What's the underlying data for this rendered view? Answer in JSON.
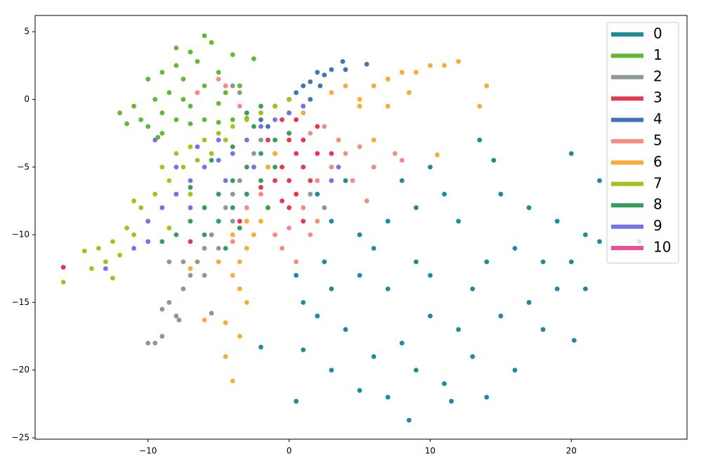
{
  "chart_data": {
    "type": "scatter",
    "xlim": [
      -18,
      28.2
    ],
    "ylim": [
      -25.1,
      6.2
    ],
    "xticks": [
      {
        "value": -10,
        "label": "−10"
      },
      0,
      10,
      20
    ],
    "yticks": [
      5,
      0,
      {
        "value": -5,
        "label": "−5"
      },
      {
        "value": -10,
        "label": "−10"
      },
      {
        "value": -15,
        "label": "−15"
      },
      {
        "value": -20,
        "label": "−20"
      },
      {
        "value": -25,
        "label": "−25"
      }
    ],
    "legend": "upper right",
    "series": [
      {
        "name": "0",
        "color": "#1f8a98",
        "x": [
          13.5,
          14.5,
          20,
          22,
          10,
          8,
          6,
          4,
          2,
          3,
          5,
          7,
          9,
          11,
          12,
          15,
          17,
          19,
          21,
          16,
          18,
          20,
          14,
          10,
          7,
          5,
          3,
          1,
          2,
          4,
          6,
          8,
          10,
          12,
          15,
          17,
          19,
          21,
          13,
          11,
          9,
          7,
          5,
          0.5,
          8.5,
          11.5,
          14,
          16,
          20.2,
          3,
          1,
          -2,
          6,
          9,
          13,
          18,
          22,
          24.8,
          0.5,
          2.5
        ],
        "y": [
          -3,
          -4.5,
          -4,
          -6,
          -5,
          -6,
          -5,
          -6,
          -7,
          -9,
          -10,
          -9,
          -8,
          -7,
          -9,
          -7,
          -8,
          -9,
          -10,
          -11,
          -12,
          -12,
          -12,
          -13,
          -14,
          -13,
          -14,
          -15,
          -16,
          -17,
          -19,
          -18,
          -16,
          -17,
          -16,
          -15,
          -14,
          -14,
          -19,
          -21,
          -20,
          -22,
          -21.5,
          -22.3,
          -23.7,
          -22.3,
          -22,
          -20,
          -17.8,
          -20,
          -18.5,
          -18.3,
          -11,
          -12,
          -14,
          -17,
          -10.5,
          -10.5,
          -13,
          -12
        ]
      },
      {
        "name": "1",
        "color": "#62b832",
        "x": [
          -6,
          -5.5,
          -7,
          -4,
          -8,
          -9,
          -6.5,
          -5,
          -7.5,
          -10,
          -8.5,
          -9.5,
          -11,
          -12,
          -10.5,
          -9,
          -8,
          -7,
          -6,
          -5,
          -4,
          -3,
          -2,
          -1,
          -9,
          -10,
          -7.5,
          -6,
          -4.5,
          -3.5,
          -2.5,
          -8,
          -11.5,
          -9.3,
          -7,
          -5
        ],
        "y": [
          4.7,
          4.2,
          3.5,
          3.3,
          2.5,
          2,
          2.8,
          2,
          1.5,
          1.5,
          0.5,
          0,
          -0.5,
          -1,
          -1.5,
          -1,
          -1.5,
          -1.8,
          -1.5,
          -1.7,
          -1.5,
          -1.4,
          -1,
          -0.5,
          -2.5,
          -2,
          0,
          1,
          0.5,
          1,
          3,
          3.8,
          -1.8,
          -2.8,
          -0.5,
          -0.3
        ]
      },
      {
        "name": "2",
        "color": "#8a9a92",
        "x": [
          -10,
          -9.5,
          -9,
          -8,
          -9,
          -8.5,
          -7.5,
          -7,
          -6.5,
          -6,
          -7.5,
          -5.5,
          -5,
          -4.5,
          -4,
          -3.5,
          -3,
          -2.5,
          -2,
          -6,
          -5,
          -4,
          -3,
          -5.5,
          -7.8,
          -8.5,
          -3.5,
          -4,
          1.5,
          2.5
        ],
        "y": [
          -18,
          -18,
          -17.5,
          -16,
          -15.5,
          -15,
          -14,
          -13,
          -12,
          -11,
          -12,
          -10,
          -9,
          -8,
          -7,
          -6,
          -5,
          -4,
          -3,
          -13,
          -11,
          -9,
          -7,
          -15.8,
          -16.3,
          -12,
          0.5,
          1,
          -7,
          -8
        ]
      },
      {
        "name": "3",
        "color": "#e8364f",
        "x": [
          0,
          0.5,
          1,
          -0.5,
          0,
          1,
          -1,
          2,
          1.5,
          0.5,
          -0.5,
          0,
          -1,
          2,
          0.5,
          -1.5,
          -2,
          -3.5,
          -7,
          -16,
          3,
          1,
          0,
          -0.5
        ],
        "y": [
          -3,
          -4,
          -5,
          -5,
          -6,
          -3,
          -4,
          -4,
          -6,
          -7,
          -7.5,
          -8,
          -6,
          -2,
          -1.5,
          -3,
          -6.5,
          -9,
          -10.5,
          -12.4,
          -4,
          -9,
          -2.5,
          -1.5
        ]
      },
      {
        "name": "4",
        "color": "#3f74b5",
        "x": [
          -2,
          -1,
          0,
          0.5,
          1,
          1.5,
          2,
          2.5,
          3,
          3.8,
          5.5,
          0,
          1.5,
          -1.5,
          4,
          2.2
        ],
        "y": [
          -1.5,
          -0.5,
          0,
          0.5,
          1,
          1.3,
          2,
          1.8,
          2.2,
          2.8,
          2.6,
          -1,
          0,
          -2,
          2.2,
          1
        ]
      },
      {
        "name": "5",
        "color": "#f88a82",
        "x": [
          -6.5,
          -5,
          -4.5,
          -3.5,
          -2,
          1.5,
          2.5,
          3.5,
          4,
          5,
          6,
          7.5,
          3,
          2,
          1,
          2,
          1.5,
          0,
          -1,
          -0.5,
          0.5,
          -4,
          -3,
          -2,
          4.5,
          -1.5,
          5.5,
          8
        ],
        "y": [
          0.5,
          1.5,
          1,
          -0.5,
          -1,
          -2.5,
          -2,
          -3,
          -4,
          -3.5,
          -5,
          -4,
          -5,
          -6,
          -8,
          -9,
          -10,
          -9.5,
          -10,
          -11,
          -12,
          -10.5,
          -8,
          -7,
          -6,
          -5,
          -7.5,
          -4.5
        ]
      },
      {
        "name": "6",
        "color": "#f8ac33",
        "x": [
          -4,
          -3.5,
          -3,
          -2.5,
          -2,
          -1.5,
          -3,
          -4,
          -3.5,
          -3,
          -5,
          -2,
          -1.5,
          -1,
          -4.5,
          -3.5,
          -4,
          -4.5,
          -6,
          1,
          3,
          4,
          5,
          6,
          7,
          8,
          9,
          10,
          11,
          12,
          8.5,
          7,
          5,
          13.5,
          14,
          10.5,
          6,
          -7
        ],
        "y": [
          -13,
          -12,
          -11,
          -10,
          -9,
          -8,
          -9,
          -10,
          -14,
          -15,
          -12,
          -6,
          -5,
          -4,
          -16.5,
          -17.5,
          -20.8,
          -19,
          -16.3,
          -1,
          0.5,
          1,
          0,
          1,
          1.5,
          2,
          2,
          2.5,
          2.5,
          2.8,
          0.5,
          -0.5,
          -0.5,
          -0.5,
          1,
          -4.1,
          -3,
          -12.5
        ]
      },
      {
        "name": "7",
        "color": "#a3c21c",
        "x": [
          -16,
          -14,
          -13.5,
          -13,
          -12.5,
          -12,
          -11.5,
          -11,
          -10.5,
          -10,
          -9.5,
          -9,
          -9,
          -8.5,
          -8,
          -7.5,
          -7,
          -6.5,
          -6,
          -5.5,
          -5,
          -4.5,
          -4,
          -3,
          -2,
          -1,
          0,
          -12.5,
          -14.5,
          -11,
          -8.5,
          -7
        ],
        "y": [
          -13.5,
          -12.5,
          -11,
          -12,
          -10.5,
          -11.5,
          -9.5,
          -10,
          -8,
          -9,
          -7,
          -8,
          -5,
          -6,
          -4,
          -5,
          -3.5,
          -4.5,
          -3,
          -4,
          -2.5,
          -3,
          -2,
          -1.5,
          -1,
          -0.5,
          0,
          -13.2,
          -11.2,
          -7.5,
          -9.5,
          -7
        ]
      },
      {
        "name": "8",
        "color": "#359e5a",
        "x": [
          -9,
          -8,
          -7,
          -6,
          -5,
          -4,
          -3,
          -2,
          -1,
          0,
          -6,
          -5,
          -4,
          -3,
          -2,
          -1,
          -7,
          -5.5,
          -4,
          -2.5,
          -3.5,
          -1.5,
          -8,
          -4.5,
          -3,
          -2
        ],
        "y": [
          -10.5,
          -10,
          -9,
          -8,
          -7,
          -6,
          -5,
          -4,
          -3,
          -2.5,
          -10,
          -9,
          -8,
          -7,
          -6,
          -5,
          -6.5,
          -4.5,
          -3.5,
          -2,
          -9.5,
          -8,
          -7,
          -11,
          -1,
          -0.5
        ]
      },
      {
        "name": "9",
        "color": "#7570ec",
        "x": [
          -13,
          -11,
          -10,
          -9,
          -8,
          -7,
          -6,
          -5,
          -4,
          -3,
          -2,
          -1,
          0,
          1,
          -8,
          -6.5,
          -5,
          -7,
          -9.5,
          -10,
          3.5,
          3,
          -4.5,
          -2.5
        ],
        "y": [
          -12.5,
          -11,
          -9,
          -8,
          -7,
          -6,
          -5,
          -4.5,
          -4,
          -3,
          -2,
          -1.5,
          -1,
          -0.5,
          -5,
          -3.5,
          -3,
          -8,
          -3,
          -10.5,
          -5,
          -6,
          -6,
          -5
        ]
      },
      {
        "name": "10",
        "color": "#e8509c",
        "x": [],
        "y": []
      }
    ]
  }
}
